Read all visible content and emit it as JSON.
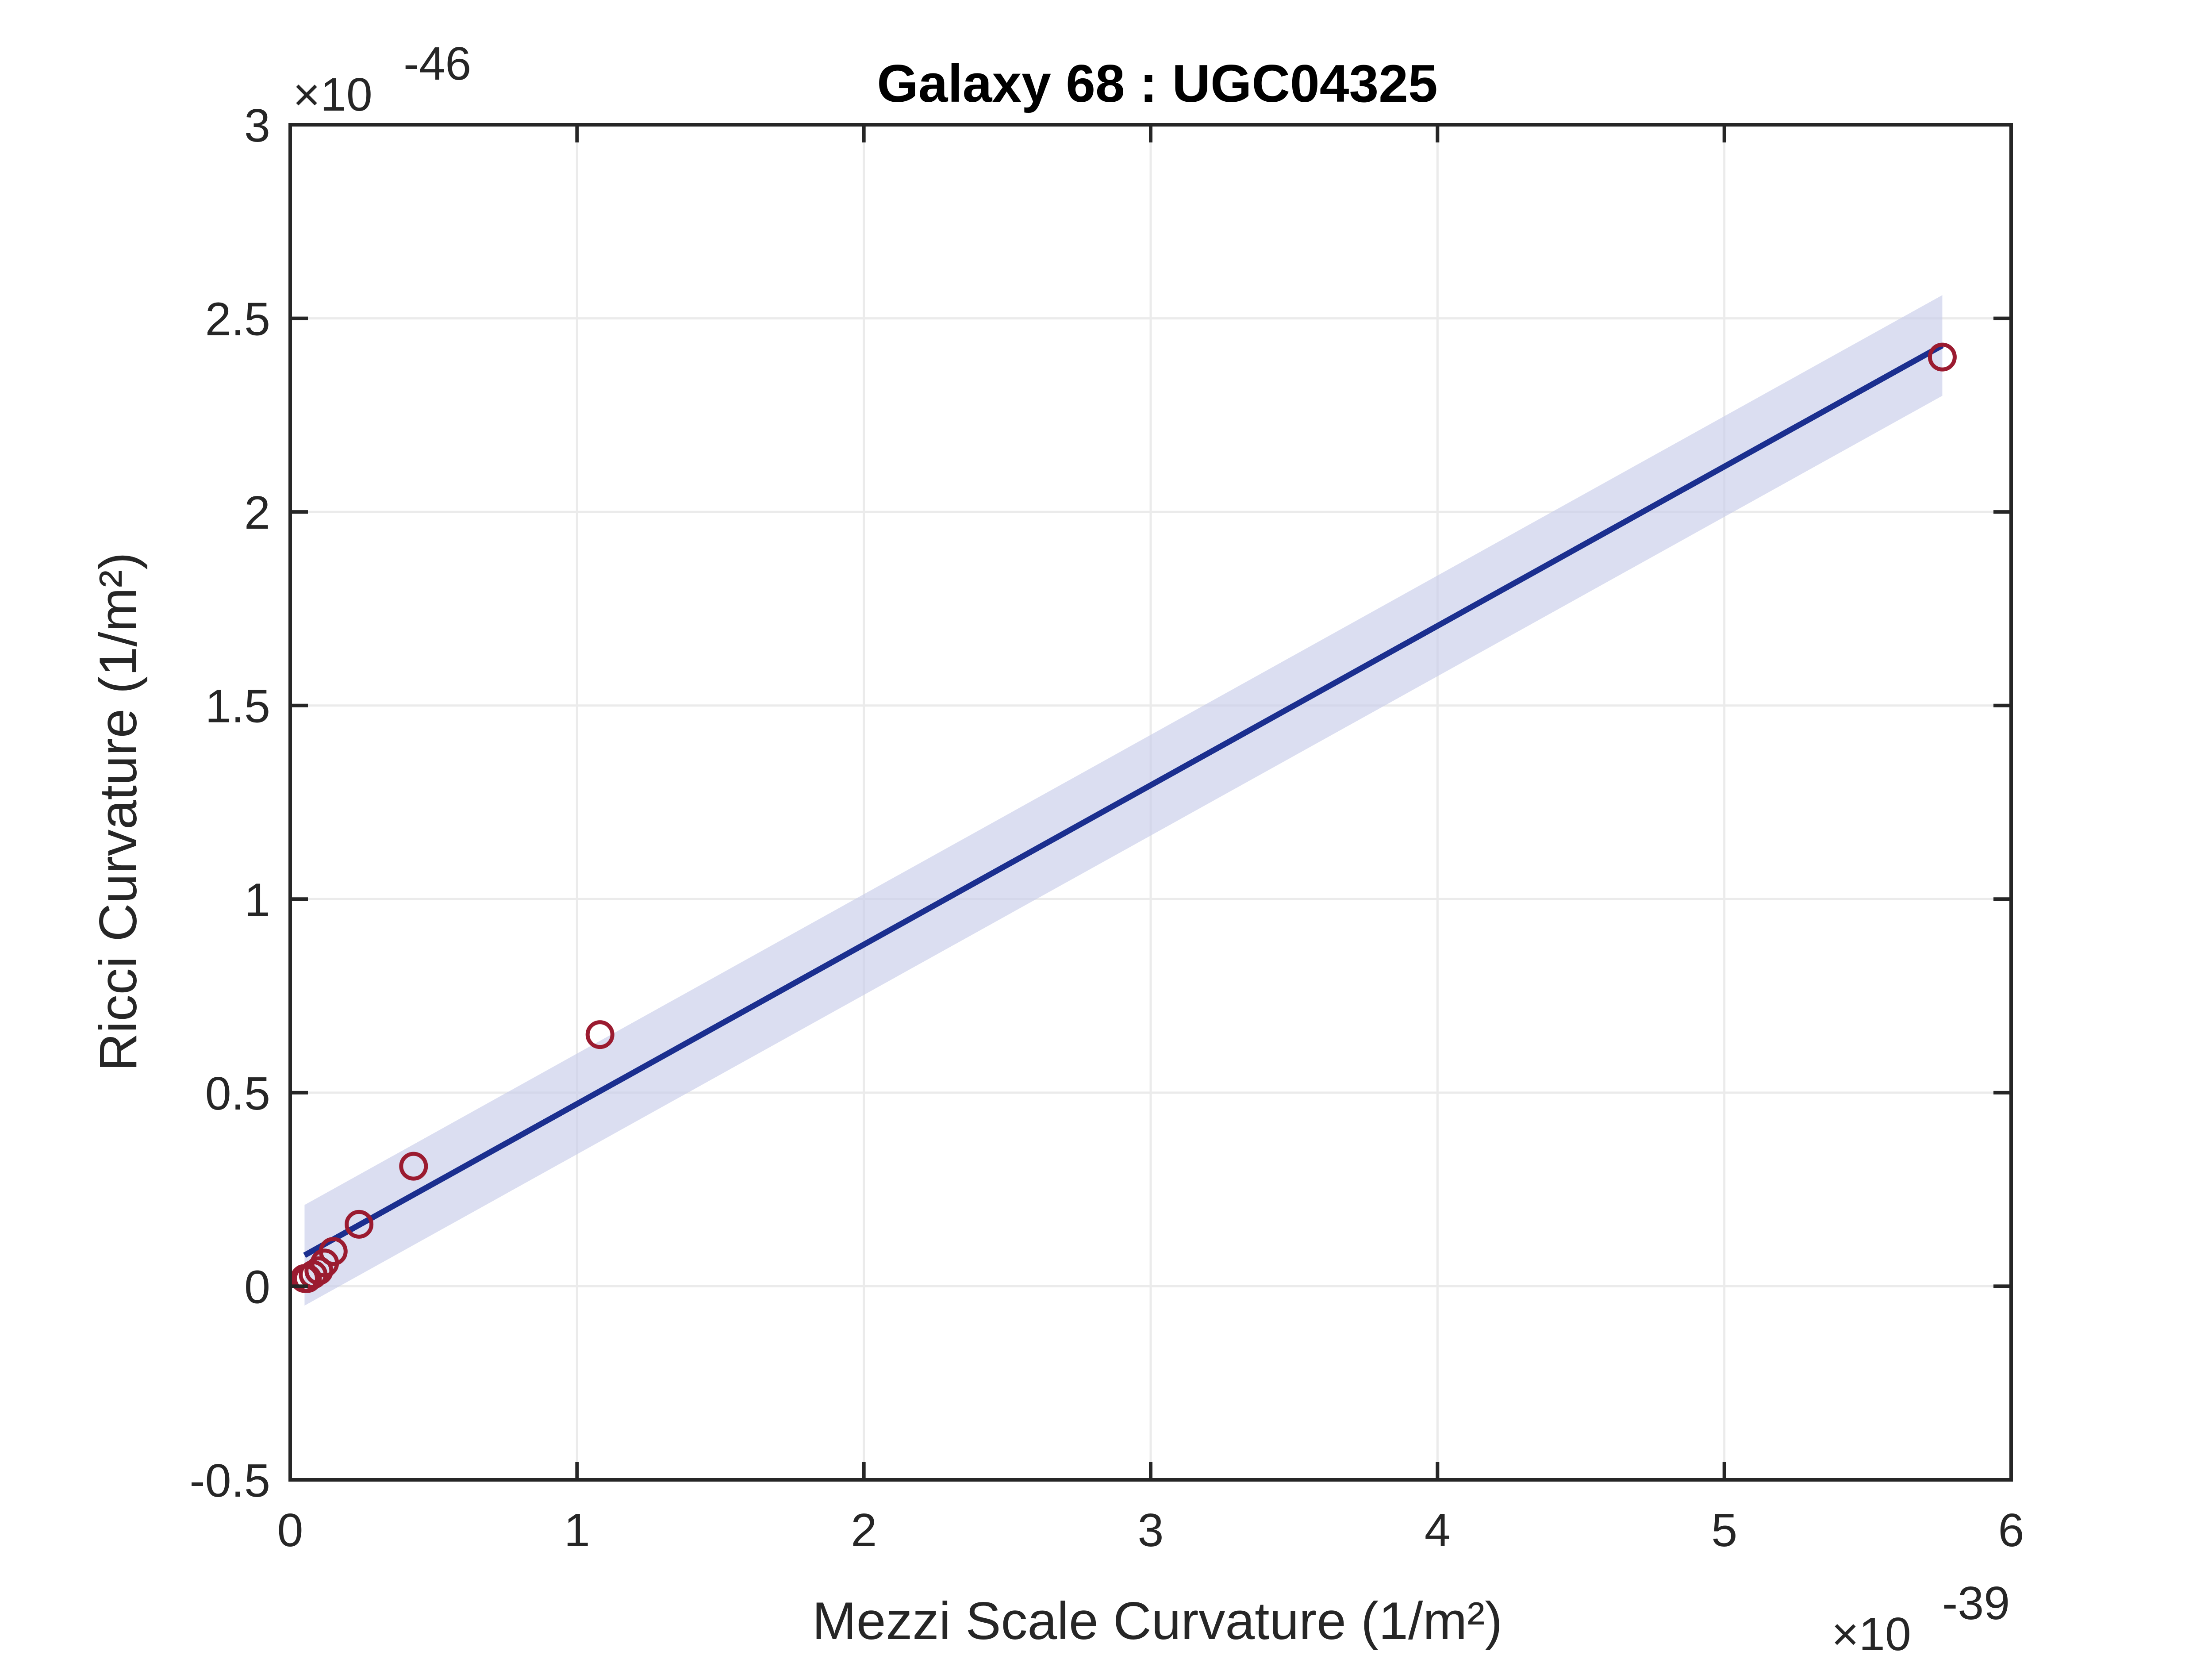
{
  "chart_data": {
    "type": "scatter",
    "title": "Galaxy 68 : UGC04325",
    "xlabel": "Mezzi Scale Curvature (1/m²)",
    "ylabel": "Ricci Curvature (1/m²)",
    "x_multiplier": "×10",
    "x_exponent": "-39",
    "y_multiplier": "×10",
    "y_exponent": "-46",
    "xlim": [
      0,
      6
    ],
    "ylim": [
      -0.5,
      3
    ],
    "xticks": [
      0,
      1,
      2,
      3,
      4,
      5,
      6
    ],
    "xtick_labels": [
      "0",
      "1",
      "2",
      "3",
      "4",
      "5",
      "6"
    ],
    "yticks": [
      -0.5,
      0,
      0.5,
      1,
      1.5,
      2,
      2.5,
      3
    ],
    "ytick_labels": [
      "-0.5",
      "0",
      "0.5",
      "1",
      "1.5",
      "2",
      "2.5",
      "3"
    ],
    "grid": true,
    "series": [
      {
        "kind": "scatter",
        "marker": "open-circle",
        "color": "#9b1b30",
        "points": [
          {
            "x": 0.05,
            "y": 0.02
          },
          {
            "x": 0.06,
            "y": 0.02
          },
          {
            "x": 0.08,
            "y": 0.03
          },
          {
            "x": 0.1,
            "y": 0.04
          },
          {
            "x": 0.12,
            "y": 0.06
          },
          {
            "x": 0.15,
            "y": 0.09
          },
          {
            "x": 0.24,
            "y": 0.16
          },
          {
            "x": 0.43,
            "y": 0.31
          },
          {
            "x": 1.08,
            "y": 0.65
          },
          {
            "x": 5.76,
            "y": 2.4
          }
        ]
      },
      {
        "kind": "line",
        "color": "#1b2f8f",
        "points": [
          {
            "x": 0.05,
            "y": 0.08
          },
          {
            "x": 5.76,
            "y": 2.43
          }
        ]
      },
      {
        "kind": "band",
        "color": "#c8cdea",
        "lower": [
          {
            "x": 0.05,
            "y": -0.05
          },
          {
            "x": 5.76,
            "y": 2.3
          }
        ],
        "upper": [
          {
            "x": 0.05,
            "y": 0.21
          },
          {
            "x": 5.76,
            "y": 2.56
          }
        ]
      }
    ]
  }
}
